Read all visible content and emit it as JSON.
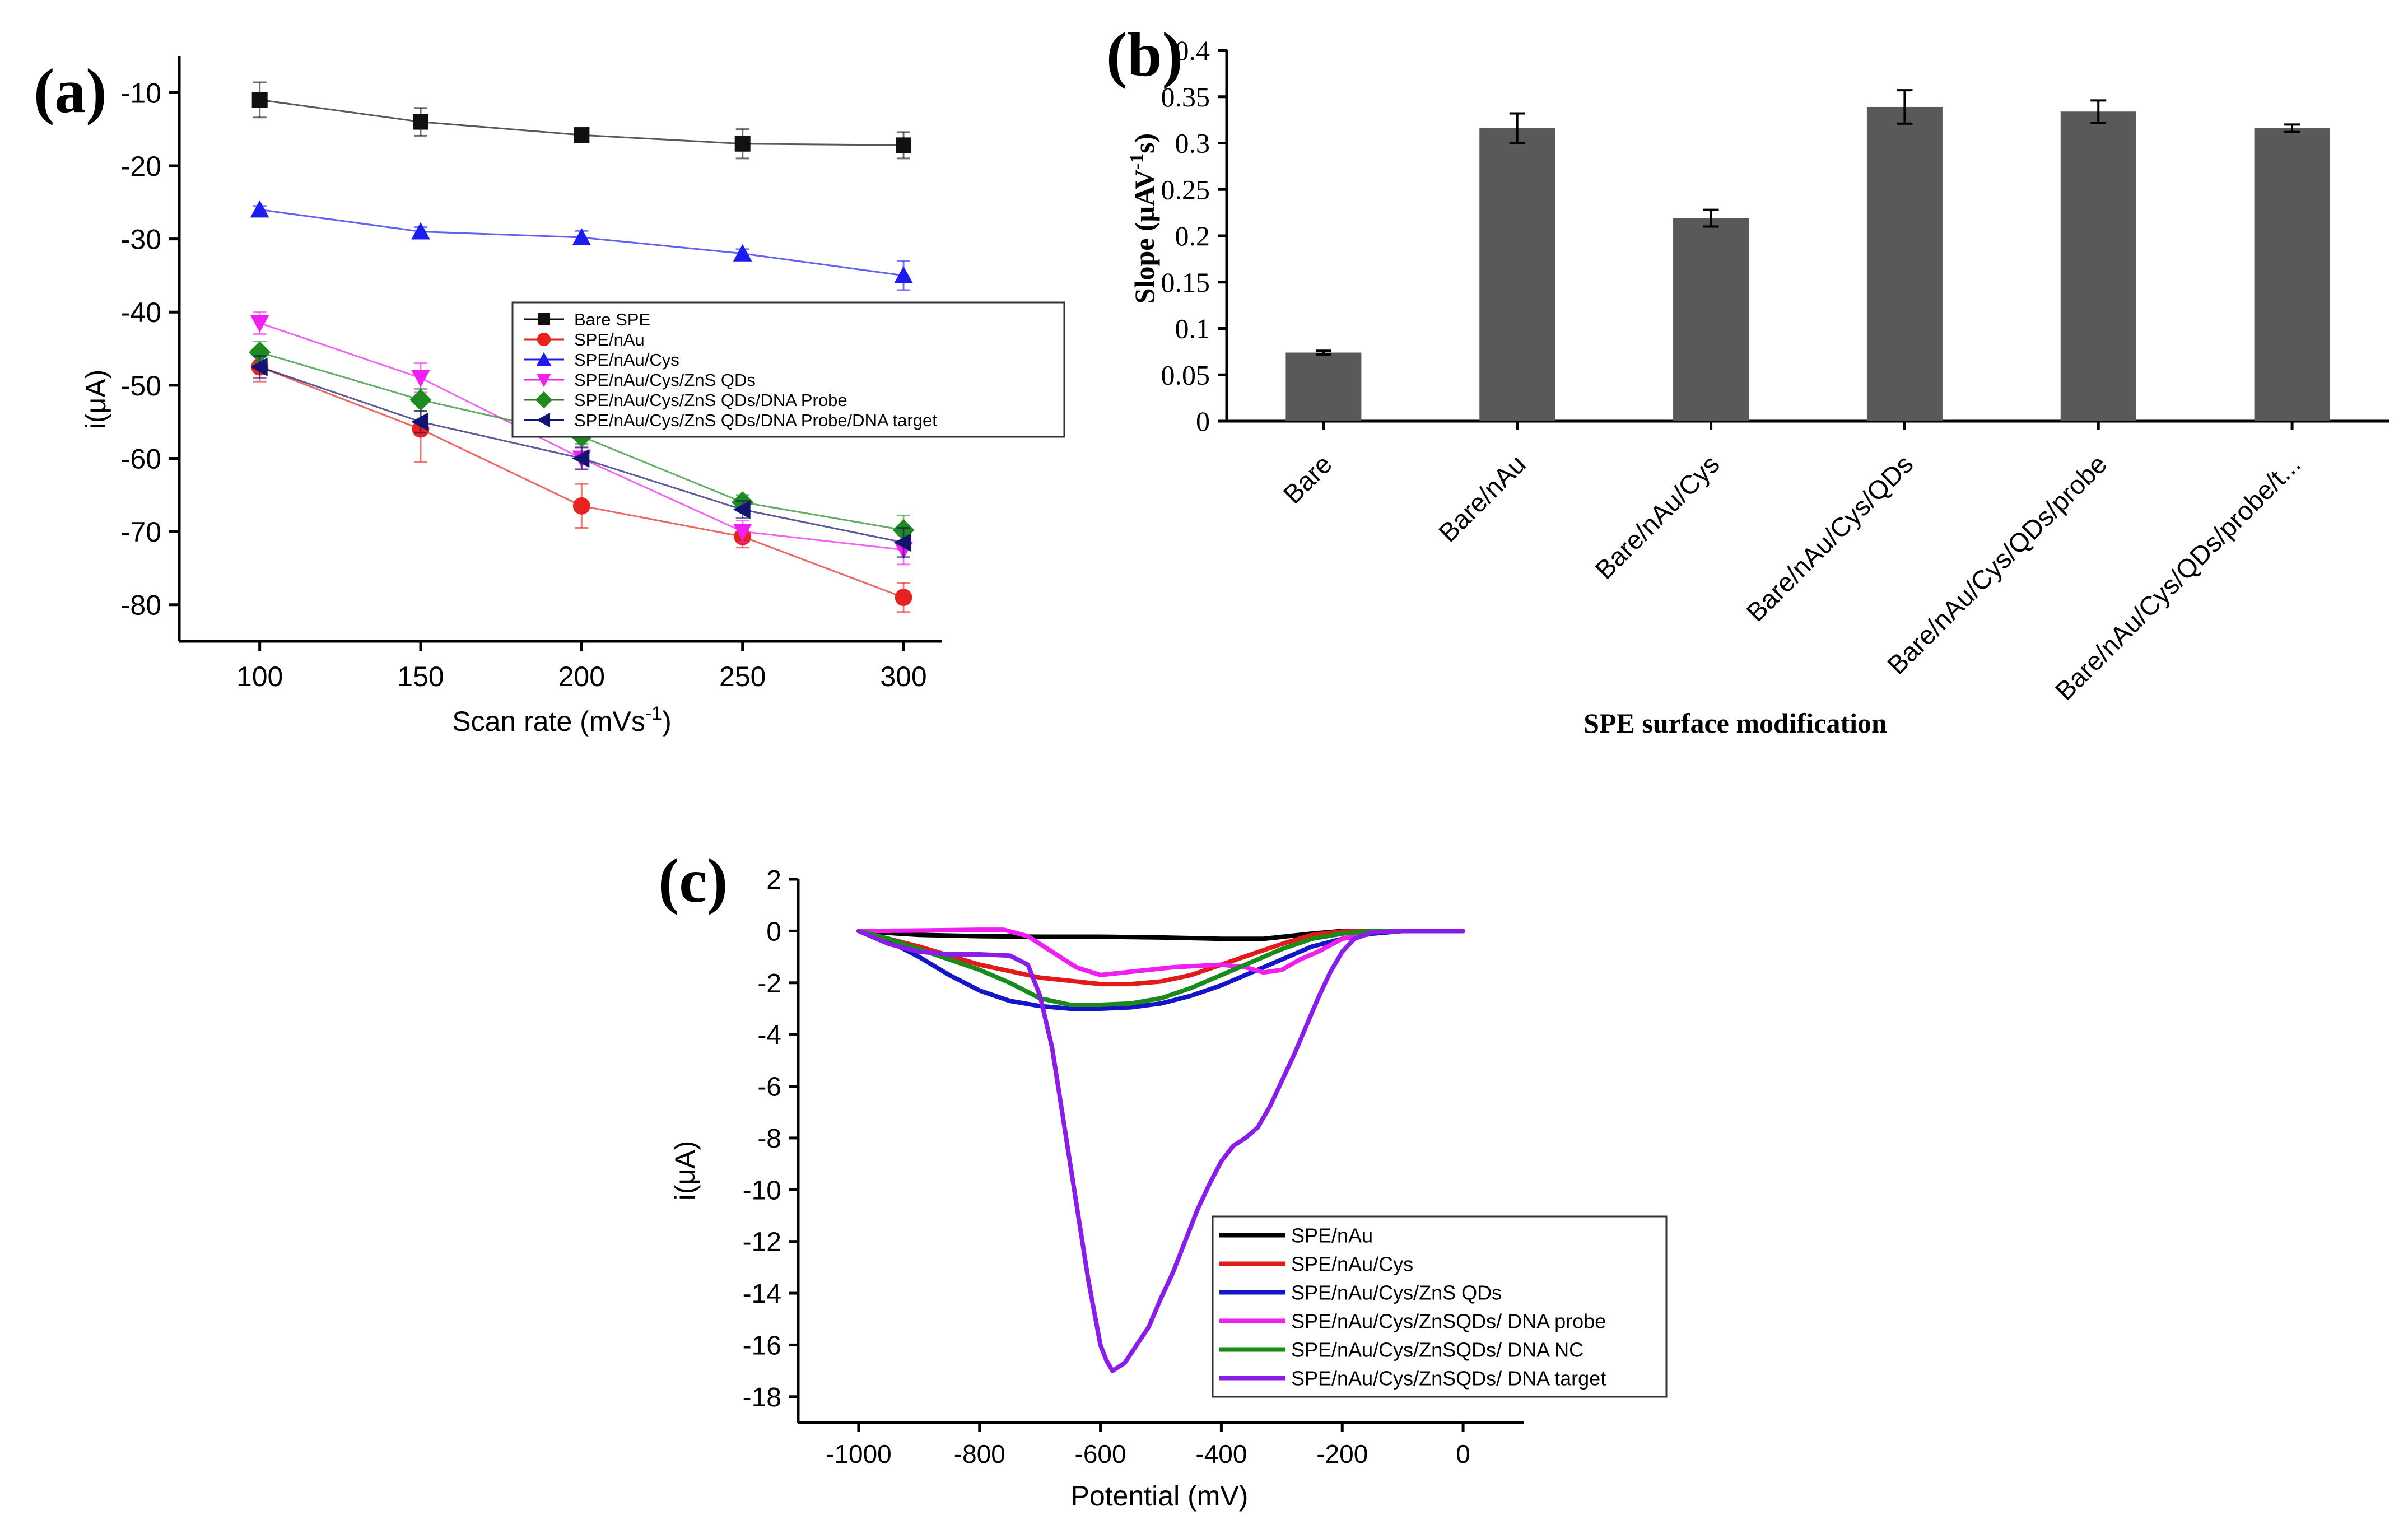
{
  "chart_data": [
    {
      "panel": "(a)",
      "type": "line",
      "xlabel": "Scan rate (mVs",
      "xlabel_sup": "-1",
      "xlabel_end": ")",
      "ylabel": "i(μA)",
      "x": [
        100,
        150,
        200,
        250,
        300
      ],
      "xlim": [
        75,
        312
      ],
      "ylim": [
        -85,
        -5
      ],
      "xticks": [
        "100",
        "150",
        "200",
        "250",
        "300"
      ],
      "yticks": [
        -10,
        -20,
        -30,
        -40,
        -50,
        -60,
        -70,
        -80
      ],
      "ytick_labels": [
        "-10",
        "-20",
        "-30",
        "-40",
        "-50",
        "-60",
        "-70",
        "-80"
      ],
      "series": [
        {
          "name": "Bare SPE",
          "marker": "square",
          "color": "#111111",
          "values": [
            -11,
            -14,
            -15.8,
            -17,
            -17.2
          ],
          "errors": [
            2.4,
            1.9,
            0.6,
            2,
            1.8
          ]
        },
        {
          "name": "SPE/nAu",
          "marker": "circle",
          "color": "#e8231f",
          "values": [
            -47.5,
            -56,
            -66.5,
            -70.7,
            -79
          ],
          "errors": [
            2,
            4.5,
            3,
            1.5,
            2
          ]
        },
        {
          "name": "SPE/nAu/Cys",
          "marker": "triangle-up",
          "color": "#1c1cf0",
          "values": [
            -26,
            -29,
            -29.8,
            -32,
            -35
          ],
          "errors": [
            0.5,
            0.6,
            0.9,
            0.6,
            2
          ]
        },
        {
          "name": "SPE/nAu/Cys/ZnS QDs",
          "marker": "triangle-down",
          "color": "#f020f0",
          "values": [
            -41.5,
            -49,
            -60,
            -70,
            -72.5
          ],
          "errors": [
            1.5,
            2,
            1.5,
            1.5,
            2
          ]
        },
        {
          "name": "SPE/nAu/Cys/ZnS QDs/DNA Probe",
          "marker": "diamond",
          "color": "#1f8a1f",
          "values": [
            -45.5,
            -52,
            -57,
            -66,
            -69.8
          ],
          "errors": [
            1.5,
            1.5,
            1,
            1,
            2
          ]
        },
        {
          "name": "SPE/nAu/Cys/ZnS QDs/DNA Probe/DNA target",
          "marker": "triangle-left",
          "color": "#141470",
          "values": [
            -47.5,
            -55,
            -60,
            -67,
            -71.5
          ],
          "errors": [
            1.5,
            1.5,
            1.5,
            1.2,
            2
          ]
        }
      ]
    },
    {
      "panel": "(b)",
      "type": "bar",
      "xlabel": "SPE surface modification",
      "ylabel": "Slope (μAV",
      "ylabel_sup": "-1",
      "ylabel_end": "s)",
      "categories": [
        "Bare",
        "Bare/nAu",
        "Bare/nAu/Cys",
        "Bare/nAu/Cys/QDs",
        "Bare/nAu/Cys/QDs/probe",
        "Bare/nAu/Cys/QDs/probe/t..."
      ],
      "values": [
        0.074,
        0.316,
        0.219,
        0.339,
        0.334,
        0.316
      ],
      "errors": [
        0.002,
        0.016,
        0.009,
        0.018,
        0.012,
        0.004
      ],
      "ylim": [
        0,
        0.4
      ],
      "yticks": [
        0,
        0.05,
        0.1,
        0.15,
        0.2,
        0.25,
        0.3,
        0.35,
        0.4
      ],
      "ytick_labels": [
        "0",
        "0.05",
        "0.1",
        "0.15",
        "0.2",
        "0.25",
        "0.3",
        "0.35",
        "0.4"
      ],
      "bar_color": "#595959"
    },
    {
      "panel": "(c)",
      "type": "line",
      "xlabel": "Potential (mV)",
      "ylabel": "i(μA)",
      "xlim": [
        -1100,
        100
      ],
      "ylim": [
        -19,
        2
      ],
      "xticks": [
        -1000,
        -800,
        -600,
        -400,
        -200,
        0
      ],
      "xtick_labels": [
        "-1000",
        "-800",
        "-600",
        "-400",
        "-200",
        "0"
      ],
      "yticks": [
        2,
        0,
        -2,
        -4,
        -6,
        -8,
        -10,
        -12,
        -14,
        -16,
        -18
      ],
      "ytick_labels": [
        "2",
        "0",
        "-2",
        "-4",
        "-6",
        "-8",
        "-10",
        "-12",
        "-14",
        "-16",
        "-18"
      ],
      "series": [
        {
          "name": "SPE/nAu",
          "color": "#000000",
          "x": [
            -1000,
            -900,
            -800,
            -700,
            -600,
            -500,
            -400,
            -330,
            -250,
            -200,
            -150,
            -100,
            0
          ],
          "y": [
            0,
            -0.15,
            -0.2,
            -0.22,
            -0.22,
            -0.25,
            -0.3,
            -0.3,
            -0.1,
            0,
            0,
            0,
            0
          ]
        },
        {
          "name": "SPE/nAu/Cys",
          "color": "#e31a1a",
          "x": [
            -1000,
            -900,
            -800,
            -700,
            -600,
            -550,
            -500,
            -450,
            -400,
            -350,
            -300,
            -250,
            -200,
            -150,
            -100,
            0
          ],
          "y": [
            0,
            -0.6,
            -1.3,
            -1.8,
            -2.05,
            -2.05,
            -1.95,
            -1.7,
            -1.3,
            -0.9,
            -0.5,
            -0.15,
            -0.02,
            0,
            0,
            0
          ]
        },
        {
          "name": "SPE/nAu/Cys/ZnS QDs",
          "color": "#1414c8",
          "x": [
            -1000,
            -950,
            -900,
            -850,
            -800,
            -750,
            -700,
            -650,
            -600,
            -550,
            -500,
            -450,
            -400,
            -350,
            -300,
            -250,
            -200,
            -150,
            -100,
            0
          ],
          "y": [
            0,
            -0.4,
            -1,
            -1.7,
            -2.3,
            -2.7,
            -2.9,
            -3,
            -3,
            -2.95,
            -2.8,
            -2.5,
            -2.1,
            -1.6,
            -1.1,
            -0.6,
            -0.3,
            -0.1,
            0,
            0
          ]
        },
        {
          "name": "SPE/nAu/Cys/ZnSQDs/ DNA probe",
          "color": "#f01ef0",
          "x": [
            -1000,
            -900,
            -800,
            -760,
            -720,
            -680,
            -640,
            -600,
            -560,
            -520,
            -480,
            -440,
            -400,
            -360,
            -330,
            -300,
            -270,
            -240,
            -200,
            -150,
            -100,
            0
          ],
          "y": [
            0,
            0.02,
            0.05,
            0.05,
            -0.2,
            -0.8,
            -1.4,
            -1.7,
            -1.6,
            -1.5,
            -1.4,
            -1.35,
            -1.3,
            -1.4,
            -1.6,
            -1.5,
            -1.1,
            -0.8,
            -0.3,
            -0.05,
            0,
            0
          ]
        },
        {
          "name": "SPE/nAu/Cys/ZnSQDs/ DNA NC",
          "color": "#1a8a1a",
          "x": [
            -1000,
            -950,
            -900,
            -850,
            -800,
            -750,
            -700,
            -650,
            -600,
            -550,
            -500,
            -450,
            -400,
            -350,
            -300,
            -250,
            -200,
            -150,
            -100,
            0
          ],
          "y": [
            0,
            -0.3,
            -0.7,
            -1.1,
            -1.5,
            -2,
            -2.6,
            -2.85,
            -2.85,
            -2.8,
            -2.6,
            -2.2,
            -1.7,
            -1.2,
            -0.7,
            -0.3,
            -0.1,
            0,
            0,
            0
          ]
        },
        {
          "name": "SPE/nAu/Cys/ZnSQDs/ DNA target",
          "color": "#8a1ee8",
          "x": [
            -1000,
            -950,
            -900,
            -850,
            -800,
            -750,
            -720,
            -700,
            -680,
            -660,
            -640,
            -620,
            -600,
            -590,
            -580,
            -560,
            -540,
            -520,
            -500,
            -480,
            -460,
            -440,
            -420,
            -400,
            -380,
            -360,
            -340,
            -320,
            -300,
            -280,
            -260,
            -240,
            -220,
            -200,
            -180,
            -150,
            -100,
            0
          ],
          "y": [
            0,
            -0.5,
            -0.8,
            -0.9,
            -0.9,
            -0.95,
            -1.3,
            -2.5,
            -4.5,
            -7.5,
            -10.5,
            -13.5,
            -16,
            -16.6,
            -17,
            -16.7,
            -16,
            -15.3,
            -14.2,
            -13.2,
            -12,
            -10.8,
            -9.8,
            -8.9,
            -8.3,
            -8,
            -7.6,
            -6.8,
            -5.8,
            -4.8,
            -3.7,
            -2.6,
            -1.6,
            -0.8,
            -0.3,
            -0.05,
            0,
            0
          ]
        }
      ]
    }
  ]
}
